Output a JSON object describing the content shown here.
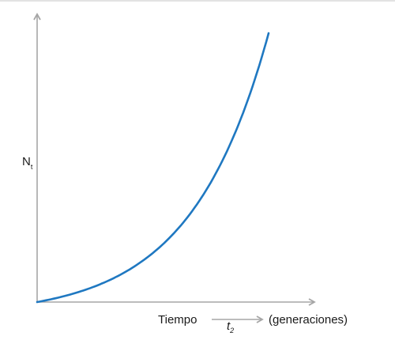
{
  "chart_data": {
    "type": "line",
    "title": "",
    "ylabel": "N",
    "ylabel_subscript": "t",
    "xlabel": "Tiempo",
    "xlabel_unit": "(generaciones)",
    "x_arrow_label": "t",
    "x_arrow_label_subscript": "2",
    "curve": "exponential growth",
    "grid": false,
    "legend": "none",
    "ticks": "none",
    "series": [
      {
        "values_note": "unscaled axes; shape only",
        "x": [
          0,
          0.1,
          0.2,
          0.3,
          0.4,
          0.5,
          0.6,
          0.7,
          0.8,
          0.9,
          1.0
        ],
        "y": [
          0,
          0.03,
          0.07,
          0.12,
          0.19,
          0.27,
          0.37,
          0.49,
          0.63,
          0.8,
          1.0
        ],
        "color": "#1f78c1"
      }
    ],
    "axis_color": "#a6a6a6"
  }
}
